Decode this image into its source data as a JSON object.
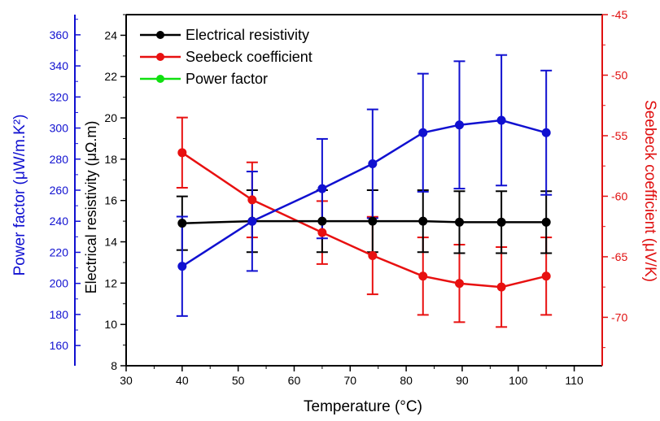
{
  "chart_data": {
    "type": "line",
    "xlabel": "Temperature (°C)",
    "xlim": [
      30,
      115
    ],
    "x_ticks": [
      30,
      40,
      50,
      60,
      70,
      80,
      90,
      100,
      110
    ],
    "legend_position": "top-left",
    "grid": false,
    "axes": {
      "left_outer": {
        "label": "Power factor (μW/m.K²)",
        "color": "#1010d0",
        "range": [
          147,
          373
        ],
        "ticks": [
          160,
          180,
          200,
          220,
          240,
          260,
          280,
          300,
          320,
          340,
          360
        ]
      },
      "left_inner": {
        "label": "Electrical resistivity (μΩ.m)",
        "color": "#000000",
        "range": [
          8,
          25
        ],
        "ticks": [
          8,
          10,
          12,
          14,
          16,
          18,
          20,
          22,
          24
        ]
      },
      "right": {
        "label": "Seebeck coefficient (μV/K)",
        "color": "#e01010",
        "range": [
          -74,
          -45
        ],
        "ticks": [
          -45,
          -50,
          -55,
          -60,
          -65,
          -70
        ]
      }
    },
    "legend": [
      {
        "name": "Electrical resistivity",
        "color": "#000000"
      },
      {
        "name": "Seebeck coefficient",
        "color": "#e81010"
      },
      {
        "name": "Power factor",
        "color": "#10e010"
      }
    ],
    "series": [
      {
        "name": "Electrical resistivity",
        "axis": "left_inner",
        "color": "#000000",
        "x": [
          40,
          52.5,
          65,
          74,
          83,
          89.5,
          97,
          105
        ],
        "y": [
          14.9,
          15.0,
          15.0,
          15.0,
          15.0,
          14.95,
          14.95,
          14.95
        ],
        "err": [
          1.3,
          1.5,
          1.5,
          1.5,
          1.5,
          1.5,
          1.5,
          1.5
        ]
      },
      {
        "name": "Seebeck coefficient",
        "axis": "right",
        "color": "#e81010",
        "x": [
          40,
          52.5,
          65,
          74,
          83,
          89.5,
          97,
          105
        ],
        "y": [
          -56.4,
          -60.3,
          -63.0,
          -64.9,
          -66.6,
          -67.2,
          -67.5,
          -66.6
        ],
        "err": [
          2.9,
          3.1,
          2.6,
          3.2,
          3.2,
          3.2,
          3.3,
          3.2
        ]
      },
      {
        "name": "Power factor",
        "axis": "left_outer",
        "color": "#1010d0",
        "x": [
          40,
          52.5,
          65,
          74,
          83,
          89.5,
          97,
          105
        ],
        "y": [
          211,
          240,
          261,
          277,
          297,
          302,
          305,
          297
        ],
        "err": [
          32,
          32,
          32,
          35,
          38,
          41,
          42,
          40
        ]
      }
    ]
  }
}
